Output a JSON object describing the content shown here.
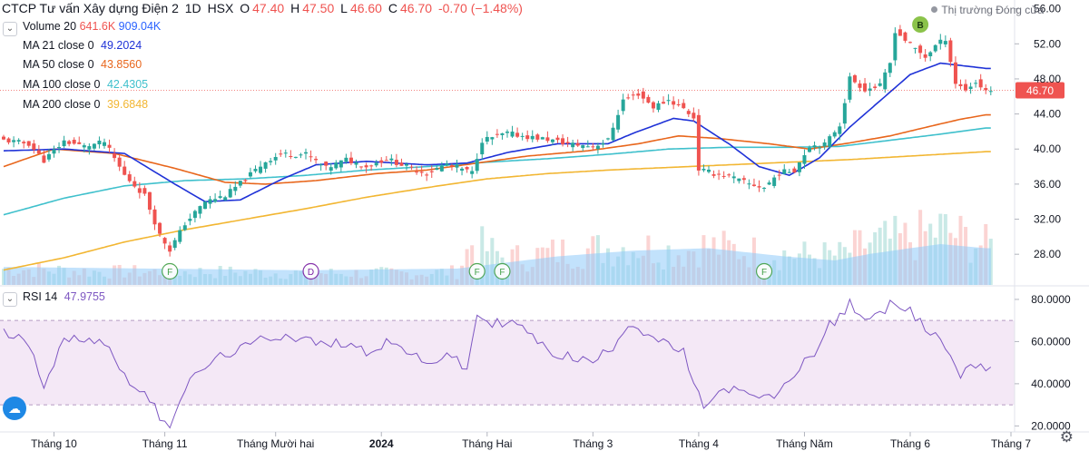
{
  "header": {
    "title": "CTCP Tư vấn Xây dựng Điện 2",
    "interval": "1D",
    "exchange": "HSX",
    "open_label": "O",
    "open": "47.40",
    "high_label": "H",
    "high": "47.50",
    "low_label": "L",
    "low": "46.60",
    "close_label": "C",
    "close": "46.70",
    "change": "-0.70 (−1.48%)",
    "market_status": "Thị trường Đóng cửa"
  },
  "indicators": {
    "volume": {
      "label": "Volume 20",
      "v1": "641.6K",
      "v2": "909.04K"
    },
    "ma21": {
      "label": "MA 21 close 0",
      "value": "49.2024",
      "color": "#1f32d7"
    },
    "ma50": {
      "label": "MA 50 close 0",
      "value": "43.8560",
      "color": "#e8661c"
    },
    "ma100": {
      "label": "MA 100 close 0",
      "value": "42.4305",
      "color": "#3fc0cc"
    },
    "ma200": {
      "label": "MA 200 close 0",
      "value": "39.6848",
      "color": "#f2b632"
    },
    "rsi": {
      "label": "RSI 14",
      "value": "47.9755",
      "color": "#7e57c2"
    }
  },
  "colors": {
    "up": "#26a69a",
    "down": "#ef5350",
    "rsi_band": "#f3e5f5",
    "volume_ma": "#90caf9"
  },
  "chart_data": {
    "type": "candlestick",
    "price_axis": {
      "ticks": [
        "28.00",
        "32.00",
        "36.00",
        "40.00",
        "44.00",
        "48.00",
        "52.00",
        "56.00"
      ],
      "range": [
        24.5,
        57
      ]
    },
    "rsi_axis": {
      "ticks": [
        "20.0000",
        "40.0000",
        "60.0000",
        "80.0000"
      ],
      "range": [
        18,
        86
      ],
      "band": [
        30,
        70
      ]
    },
    "last_price_label": "46.70",
    "x_labels": [
      "Tháng 10",
      "Tháng 11",
      "Tháng Mười hai",
      "2024",
      "Tháng Hai",
      "Tháng 3",
      "Tháng 4",
      "Tháng Năm",
      "Tháng 6",
      "Tháng 7"
    ],
    "x_label_index": [
      10,
      32,
      54,
      75,
      96,
      117,
      138,
      159,
      180,
      200
    ],
    "event_markers": [
      {
        "label": "F",
        "index": 33,
        "kind": "earnings"
      },
      {
        "label": "D",
        "index": 61,
        "kind": "dividend"
      },
      {
        "label": "F",
        "index": 94,
        "kind": "earnings"
      },
      {
        "label": "F",
        "index": 99,
        "kind": "earnings"
      },
      {
        "label": "F",
        "index": 151,
        "kind": "earnings"
      }
    ],
    "trade_marker": {
      "label": "B",
      "index": 182,
      "price": 55.0
    },
    "close_anchors": [
      [
        0,
        41.0
      ],
      [
        5,
        40.6
      ],
      [
        8,
        38.7
      ],
      [
        12,
        40.9
      ],
      [
        16,
        40.3
      ],
      [
        20,
        40.8
      ],
      [
        24,
        37.0
      ],
      [
        28,
        34.7
      ],
      [
        31,
        30.2
      ],
      [
        33,
        28.5
      ],
      [
        36,
        31.5
      ],
      [
        40,
        34.0
      ],
      [
        44,
        34.7
      ],
      [
        47,
        36.1
      ],
      [
        52,
        38.6
      ],
      [
        55,
        39.4
      ],
      [
        60,
        39.4
      ],
      [
        64,
        37.8
      ],
      [
        68,
        38.8
      ],
      [
        72,
        38.0
      ],
      [
        76,
        38.9
      ],
      [
        80,
        38.0
      ],
      [
        84,
        37.2
      ],
      [
        88,
        38.3
      ],
      [
        93,
        37.3
      ],
      [
        95,
        41.0
      ],
      [
        100,
        41.8
      ],
      [
        104,
        41.4
      ],
      [
        108,
        41.1
      ],
      [
        112,
        40.6
      ],
      [
        117,
        40.3
      ],
      [
        120,
        41.0
      ],
      [
        123,
        45.6
      ],
      [
        126,
        46.3
      ],
      [
        129,
        44.8
      ],
      [
        132,
        45.6
      ],
      [
        135,
        44.6
      ],
      [
        137,
        43.6
      ],
      [
        138,
        37.7
      ],
      [
        141,
        37.2
      ],
      [
        144,
        36.9
      ],
      [
        148,
        36.0
      ],
      [
        151,
        35.6
      ],
      [
        154,
        37.3
      ],
      [
        157,
        37.6
      ],
      [
        160,
        40.4
      ],
      [
        163,
        40.5
      ],
      [
        166,
        42.8
      ],
      [
        168,
        48.1
      ],
      [
        171,
        46.8
      ],
      [
        174,
        47.2
      ],
      [
        176,
        49.8
      ],
      [
        177,
        53.5
      ],
      [
        180,
        51.9
      ],
      [
        183,
        50.5
      ],
      [
        185,
        51.8
      ],
      [
        187,
        52.6
      ],
      [
        189,
        47.5
      ],
      [
        191,
        46.8
      ],
      [
        193,
        47.6
      ],
      [
        195,
        46.7
      ]
    ],
    "volume_anchors": [
      [
        0,
        0.25
      ],
      [
        20,
        0.2
      ],
      [
        40,
        0.2
      ],
      [
        60,
        0.18
      ],
      [
        80,
        0.18
      ],
      [
        90,
        0.2
      ],
      [
        93,
        0.65
      ],
      [
        100,
        0.4
      ],
      [
        110,
        0.5
      ],
      [
        118,
        0.55
      ],
      [
        125,
        0.6
      ],
      [
        135,
        0.5
      ],
      [
        138,
        0.6
      ],
      [
        150,
        0.5
      ],
      [
        160,
        0.45
      ],
      [
        166,
        0.45
      ],
      [
        172,
        0.65
      ],
      [
        180,
        0.7
      ],
      [
        186,
        0.85
      ],
      [
        195,
        0.6
      ]
    ],
    "volume_ma_anchors": [
      [
        0,
        0.22
      ],
      [
        30,
        0.2
      ],
      [
        60,
        0.18
      ],
      [
        90,
        0.2
      ],
      [
        110,
        0.35
      ],
      [
        125,
        0.42
      ],
      [
        140,
        0.45
      ],
      [
        155,
        0.35
      ],
      [
        165,
        0.3
      ],
      [
        172,
        0.38
      ],
      [
        180,
        0.45
      ],
      [
        186,
        0.5
      ],
      [
        195,
        0.45
      ]
    ],
    "rsi_anchors": [
      [
        0,
        64
      ],
      [
        5,
        60
      ],
      [
        8,
        40
      ],
      [
        12,
        60
      ],
      [
        16,
        62
      ],
      [
        20,
        60
      ],
      [
        24,
        44
      ],
      [
        28,
        35
      ],
      [
        31,
        25
      ],
      [
        33,
        21
      ],
      [
        36,
        38
      ],
      [
        40,
        48
      ],
      [
        44,
        54
      ],
      [
        48,
        57
      ],
      [
        52,
        62
      ],
      [
        56,
        63
      ],
      [
        60,
        61
      ],
      [
        64,
        58
      ],
      [
        68,
        60
      ],
      [
        72,
        55
      ],
      [
        76,
        60
      ],
      [
        80,
        56
      ],
      [
        84,
        48
      ],
      [
        88,
        55
      ],
      [
        92,
        46
      ],
      [
        94,
        73
      ],
      [
        97,
        68
      ],
      [
        100,
        70
      ],
      [
        104,
        65
      ],
      [
        108,
        55
      ],
      [
        112,
        53
      ],
      [
        117,
        50
      ],
      [
        121,
        58
      ],
      [
        124,
        69
      ],
      [
        127,
        65
      ],
      [
        131,
        59
      ],
      [
        135,
        55
      ],
      [
        137,
        38
      ],
      [
        139,
        30
      ],
      [
        144,
        38
      ],
      [
        148,
        34
      ],
      [
        152,
        33
      ],
      [
        155,
        38
      ],
      [
        158,
        48
      ],
      [
        162,
        58
      ],
      [
        164,
        68
      ],
      [
        166,
        71
      ],
      [
        168,
        78
      ],
      [
        171,
        71
      ],
      [
        174,
        72
      ],
      [
        177,
        80
      ],
      [
        180,
        74
      ],
      [
        183,
        66
      ],
      [
        186,
        62
      ],
      [
        188,
        52
      ],
      [
        190,
        44
      ],
      [
        192,
        50
      ],
      [
        195,
        48
      ]
    ],
    "ma21_anchors": [
      [
        0,
        39.8
      ],
      [
        12,
        40.0
      ],
      [
        24,
        39.5
      ],
      [
        34,
        36.0
      ],
      [
        40,
        34.0
      ],
      [
        47,
        34.2
      ],
      [
        55,
        36.5
      ],
      [
        62,
        38.2
      ],
      [
        72,
        38.6
      ],
      [
        84,
        38.2
      ],
      [
        92,
        38.4
      ],
      [
        100,
        39.6
      ],
      [
        110,
        40.6
      ],
      [
        120,
        40.6
      ],
      [
        125,
        41.8
      ],
      [
        133,
        43.5
      ],
      [
        137,
        43.2
      ],
      [
        144,
        40.6
      ],
      [
        150,
        38.0
      ],
      [
        156,
        37.0
      ],
      [
        162,
        39.0
      ],
      [
        168,
        42.5
      ],
      [
        174,
        45.5
      ],
      [
        180,
        48.5
      ],
      [
        186,
        49.8
      ],
      [
        195,
        49.2
      ]
    ],
    "ma50_anchors": [
      [
        0,
        38.0
      ],
      [
        10,
        40.0
      ],
      [
        22,
        39.5
      ],
      [
        34,
        37.8
      ],
      [
        44,
        36.2
      ],
      [
        52,
        36.0
      ],
      [
        62,
        36.4
      ],
      [
        74,
        37.2
      ],
      [
        84,
        37.6
      ],
      [
        94,
        38.4
      ],
      [
        104,
        39.2
      ],
      [
        116,
        39.8
      ],
      [
        126,
        40.6
      ],
      [
        134,
        41.5
      ],
      [
        142,
        41.2
      ],
      [
        152,
        40.6
      ],
      [
        160,
        40.0
      ],
      [
        168,
        40.7
      ],
      [
        176,
        41.5
      ],
      [
        184,
        42.6
      ],
      [
        190,
        43.4
      ],
      [
        195,
        43.9
      ]
    ],
    "ma100_anchors": [
      [
        0,
        32.5
      ],
      [
        12,
        34.4
      ],
      [
        24,
        35.8
      ],
      [
        36,
        36.4
      ],
      [
        48,
        36.6
      ],
      [
        60,
        37.0
      ],
      [
        72,
        37.6
      ],
      [
        84,
        38.0
      ],
      [
        96,
        38.5
      ],
      [
        108,
        38.9
      ],
      [
        120,
        39.4
      ],
      [
        132,
        40.0
      ],
      [
        144,
        40.2
      ],
      [
        156,
        40.2
      ],
      [
        166,
        40.3
      ],
      [
        176,
        41.0
      ],
      [
        186,
        41.7
      ],
      [
        195,
        42.4
      ]
    ],
    "ma200_anchors": [
      [
        0,
        26.2
      ],
      [
        12,
        27.6
      ],
      [
        24,
        29.4
      ],
      [
        36,
        30.8
      ],
      [
        48,
        32.0
      ],
      [
        60,
        33.2
      ],
      [
        72,
        34.5
      ],
      [
        84,
        35.6
      ],
      [
        96,
        36.6
      ],
      [
        108,
        37.2
      ],
      [
        120,
        37.6
      ],
      [
        132,
        37.9
      ],
      [
        144,
        38.2
      ],
      [
        156,
        38.5
      ],
      [
        168,
        38.8
      ],
      [
        180,
        39.2
      ],
      [
        195,
        39.7
      ]
    ]
  }
}
